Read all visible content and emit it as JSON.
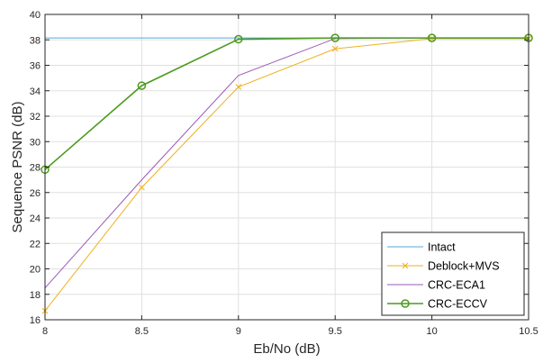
{
  "chart_data": {
    "type": "line",
    "xlabel": "Eb/No (dB)",
    "ylabel": "Sequence PSNR (dB)",
    "xlim": [
      8,
      10.5
    ],
    "ylim": [
      16,
      40
    ],
    "x_ticks": [
      8,
      8.5,
      9,
      9.5,
      10,
      10.5
    ],
    "x_tick_labels": [
      "8",
      "8.5",
      "9",
      "9.5",
      "10",
      "10.5"
    ],
    "y_ticks": [
      16,
      18,
      20,
      22,
      24,
      26,
      28,
      30,
      32,
      34,
      36,
      38,
      40
    ],
    "y_tick_labels": [
      "16",
      "18",
      "20",
      "22",
      "24",
      "26",
      "28",
      "30",
      "32",
      "34",
      "36",
      "38",
      "40"
    ],
    "grid": true,
    "legend_position": "bottom-right",
    "x": [
      8,
      8.5,
      9,
      9.5,
      10,
      10.5
    ],
    "series": [
      {
        "name": "Intact",
        "color": "#5aa6d8",
        "marker": "none",
        "values": [
          38.15,
          38.15,
          38.15,
          38.15,
          38.15,
          38.15
        ]
      },
      {
        "name": "Deblock+MVS",
        "color": "#edb120",
        "marker": "x",
        "values": [
          16.7,
          26.4,
          34.3,
          37.3,
          38.1,
          38.1
        ]
      },
      {
        "name": "CRC-ECA1",
        "color": "#9b59b6",
        "marker": "none",
        "values": [
          18.5,
          27.0,
          35.2,
          38.1,
          38.15,
          38.15
        ]
      },
      {
        "name": "CRC-ECCV",
        "color": "#4c9a1f",
        "marker": "o",
        "values": [
          27.8,
          34.4,
          38.05,
          38.15,
          38.15,
          38.15
        ]
      }
    ]
  }
}
